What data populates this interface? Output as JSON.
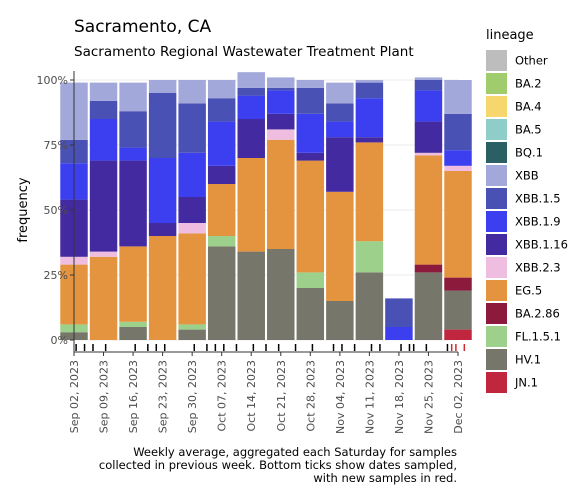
{
  "chart_data": {
    "type": "bar",
    "stacked": true,
    "title": "Sacramento, CA",
    "subtitle": "Sacramento Regional Wastewater Treatment Plant",
    "ylabel": "frequency",
    "ylim": [
      0,
      1
    ],
    "yticks": [
      "0%",
      "25%",
      "50%",
      "75%",
      "100%"
    ],
    "x_tick_labels": [
      "Sep 02, 2023",
      "Sep 09, 2023",
      "Sep 16, 2023",
      "Sep 23, 2023",
      "Sep 30, 2023",
      "Oct 07, 2023",
      "Oct 14, 2023",
      "Oct 21, 2023",
      "Oct 28, 2023",
      "Nov 04, 2023",
      "Nov 11, 2023",
      "Nov 18, 2023",
      "Nov 25, 2023",
      "Dec 02, 2023"
    ],
    "categories": [
      "2023-09-02",
      "2023-09-09",
      "2023-09-16",
      "2023-09-23",
      "2023-09-30",
      "2023-10-07",
      "2023-10-14",
      "2023-10-21",
      "2023-10-28",
      "2023-11-04",
      "2023-11-11",
      "2023-11-18",
      "2023-11-25",
      "2023-12-02"
    ],
    "legend_title": "lineage",
    "legend_position": "right",
    "series": [
      {
        "name": "Other",
        "color": "#bdbdbd",
        "values": [
          0,
          0,
          0,
          0,
          0,
          0,
          0,
          0,
          0,
          0,
          0,
          0,
          0,
          0
        ]
      },
      {
        "name": "BA.2",
        "color": "#a1cc6e",
        "values": [
          0,
          0,
          0,
          0,
          0,
          0,
          0,
          0,
          0,
          0,
          0,
          0,
          0,
          0
        ]
      },
      {
        "name": "BA.4",
        "color": "#f5d76e",
        "values": [
          0,
          0,
          0,
          0,
          0,
          0,
          0,
          0,
          0,
          0,
          0,
          0,
          0,
          0
        ]
      },
      {
        "name": "BA.5",
        "color": "#8ecdc8",
        "values": [
          0,
          0,
          0,
          0,
          0,
          0,
          0,
          0,
          0,
          0,
          0,
          0,
          0,
          0
        ]
      },
      {
        "name": "BQ.1",
        "color": "#2a5f63",
        "values": [
          0,
          0,
          0,
          0,
          0,
          0,
          0,
          0,
          0,
          0,
          0,
          0,
          0,
          0
        ]
      },
      {
        "name": "XBB",
        "color": "#a3a8db",
        "values": [
          0.22,
          0.07,
          0.11,
          0.05,
          0.09,
          0.07,
          0.06,
          0.04,
          0.03,
          0.08,
          0.01,
          0.0,
          0.01,
          0.13
        ]
      },
      {
        "name": "XBB.1.5",
        "color": "#4a51b4",
        "values": [
          0.09,
          0.07,
          0.14,
          0.25,
          0.19,
          0.09,
          0.03,
          0.01,
          0.1,
          0.07,
          0.06,
          0.11,
          0.04,
          0.14
        ]
      },
      {
        "name": "XBB.1.9",
        "color": "#3b3ff0",
        "values": [
          0.14,
          0.16,
          0.05,
          0.25,
          0.17,
          0.17,
          0.09,
          0.09,
          0.15,
          0.06,
          0.15,
          0.05,
          0.12,
          0.06
        ]
      },
      {
        "name": "XBB.1.16",
        "color": "#432aa0",
        "values": [
          0.22,
          0.35,
          0.33,
          0.05,
          0.1,
          0.07,
          0.15,
          0.06,
          0.03,
          0.21,
          0.02,
          0.0,
          0.12,
          0.0
        ]
      },
      {
        "name": "XBB.2.3",
        "color": "#efbde0",
        "values": [
          0.03,
          0.02,
          0.0,
          0.0,
          0.04,
          0.0,
          0.0,
          0.04,
          0.0,
          0.0,
          0.0,
          0.0,
          0.01,
          0.02
        ]
      },
      {
        "name": "EG.5",
        "color": "#e4933f",
        "values": [
          0.23,
          0.32,
          0.29,
          0.4,
          0.35,
          0.2,
          0.36,
          0.42,
          0.43,
          0.42,
          0.38,
          0.0,
          0.42,
          0.41
        ]
      },
      {
        "name": "BA.2.86",
        "color": "#8b1a3c",
        "values": [
          0,
          0,
          0,
          0,
          0,
          0,
          0,
          0,
          0,
          0,
          0,
          0,
          0.03,
          0.05
        ]
      },
      {
        "name": "FL.1.5.1",
        "color": "#9dd08a",
        "values": [
          0.03,
          0.0,
          0.02,
          0.0,
          0.02,
          0.04,
          0.0,
          0.0,
          0.06,
          0.0,
          0.12,
          0.0,
          0.0,
          0.0
        ]
      },
      {
        "name": "HV.1",
        "color": "#77766a",
        "values": [
          0.03,
          0.0,
          0.05,
          0.0,
          0.04,
          0.36,
          0.34,
          0.35,
          0.2,
          0.15,
          0.26,
          0.0,
          0.26,
          0.15
        ]
      },
      {
        "name": "JN.1",
        "color": "#c1263f",
        "values": [
          0,
          0,
          0,
          0,
          0,
          0,
          0,
          0,
          0,
          0,
          0,
          0,
          0,
          0.04
        ]
      }
    ],
    "sample_ticks_days": [
      0.5,
      2.5,
      4.5,
      7.5,
      14.5,
      17.5,
      19.5,
      21.5,
      28.5,
      31.5,
      33.5,
      35.5,
      38.5,
      42.5,
      45.5,
      48.5,
      52.5,
      56.5,
      61.5,
      63.5,
      66.5,
      70.5,
      72.5,
      77.5,
      79.5,
      80.5,
      83.5,
      88.5
    ],
    "new_sample_ticks_days": [
      89.5,
      90.5,
      92.5
    ],
    "footnote": [
      "Weekly average, aggregated each Saturday for samples",
      "collected in previous week. Bottom ticks show dates sampled,",
      "with new samples in red."
    ]
  }
}
